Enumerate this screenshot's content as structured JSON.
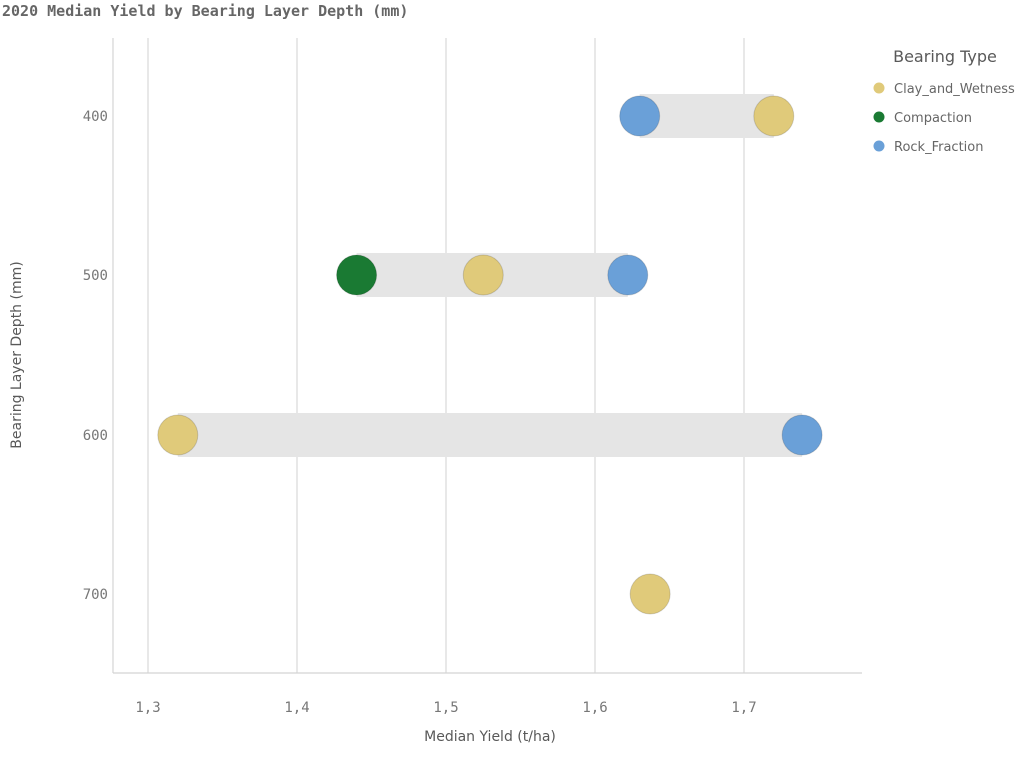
{
  "chart_data": {
    "type": "scatter",
    "title": "2020 Median Yield by Bearing Layer Depth (mm)",
    "xlabel": "Median Yield (t/ha)",
    "ylabel": "Bearing Layer Depth (mm)",
    "xlim": [
      1.28,
      1.78
    ],
    "x_ticks": [
      {
        "value": 1.3,
        "label": "1,3"
      },
      {
        "value": 1.4,
        "label": "1,4"
      },
      {
        "value": 1.5,
        "label": "1,5"
      },
      {
        "value": 1.6,
        "label": "1,6"
      },
      {
        "value": 1.7,
        "label": "1,7"
      }
    ],
    "categories": [
      "400",
      "500",
      "600",
      "700"
    ],
    "grid": "vertical",
    "legend": {
      "title": "Bearing Type",
      "placement": "top-right"
    },
    "series": [
      {
        "name": "Clay_and_Wetness",
        "color": "#e0ca7a",
        "points": [
          {
            "y": "400",
            "x": 1.72
          },
          {
            "y": "500",
            "x": 1.525
          },
          {
            "y": "600",
            "x": 1.32
          },
          {
            "y": "700",
            "x": 1.637
          }
        ]
      },
      {
        "name": "Compaction",
        "color": "#1a7a33",
        "points": [
          {
            "y": "500",
            "x": 1.44
          }
        ]
      },
      {
        "name": "Rock_Fraction",
        "color": "#6aa0d8",
        "points": [
          {
            "y": "400",
            "x": 1.63
          },
          {
            "y": "500",
            "x": 1.622
          },
          {
            "y": "600",
            "x": 1.739
          }
        ]
      }
    ]
  }
}
